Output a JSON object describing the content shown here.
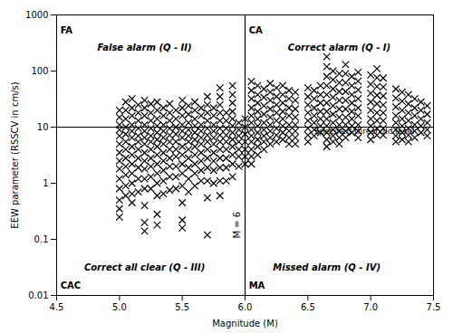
{
  "chart_data": {
    "type": "scatter",
    "xlabel": "Magnitude (M)",
    "ylabel": "EEW parameter (RSSCV in cm/s)",
    "xlim": [
      4.5,
      7.5
    ],
    "ylim": [
      0.01,
      1000
    ],
    "log": "y",
    "grid": false,
    "xticks": [
      4.5,
      {
        "value": 5,
        "label": "5.0"
      },
      5.5,
      {
        "value": 6,
        "label": "6.0"
      },
      6.5,
      {
        "value": 7,
        "label": "7.0"
      },
      7.5
    ],
    "yticks": [
      0.01,
      0.1,
      1,
      10,
      100,
      1000
    ],
    "marker": "x",
    "color": "black",
    "hlines": [
      10
    ],
    "vlines": [
      6.0
    ],
    "annotations": [
      {
        "text": "FA",
        "x": 4.53,
        "y": 600
      },
      {
        "text": "CA",
        "x": 6.03,
        "y": 600
      },
      {
        "text": "CAC",
        "x": 4.53,
        "y": 0.013
      },
      {
        "text": "MA",
        "x": 6.03,
        "y": 0.013
      },
      {
        "text": "False alarm (Q - II)",
        "x": 5.2,
        "y": 300
      },
      {
        "text": "Correct alarm (Q - I)",
        "x": 6.75,
        "y": 300
      },
      {
        "text": "Correct all clear (Q - III)",
        "x": 5.2,
        "y": 0.028
      },
      {
        "text": "Missed alarm (Q - IV)",
        "x": 6.65,
        "y": 0.028
      },
      {
        "text": "Specified threshold level",
        "x": 6.55,
        "y": 7.5
      },
      {
        "text": "M = 6",
        "x": 5.96,
        "y": 0.18
      }
    ],
    "x": [
      5.0,
      5.0,
      5.0,
      5.0,
      5.0,
      5.0,
      5.0,
      5.0,
      5.0,
      5.0,
      5.0,
      5.0,
      5.0,
      5.0,
      5.05,
      5.05,
      5.05,
      5.05,
      5.05,
      5.05,
      5.05,
      5.05,
      5.05,
      5.05,
      5.05,
      5.05,
      5.1,
      5.1,
      5.1,
      5.1,
      5.1,
      5.1,
      5.1,
      5.1,
      5.1,
      5.1,
      5.1,
      5.1,
      5.1,
      5.15,
      5.15,
      5.15,
      5.15,
      5.15,
      5.15,
      5.15,
      5.15,
      5.15,
      5.15,
      5.15,
      5.2,
      5.2,
      5.2,
      5.2,
      5.2,
      5.2,
      5.2,
      5.2,
      5.2,
      5.2,
      5.2,
      5.2,
      5.2,
      5.2,
      5.2,
      5.25,
      5.25,
      5.25,
      5.25,
      5.25,
      5.25,
      5.25,
      5.25,
      5.25,
      5.25,
      5.25,
      5.3,
      5.3,
      5.3,
      5.3,
      5.3,
      5.3,
      5.3,
      5.3,
      5.3,
      5.3,
      5.3,
      5.3,
      5.3,
      5.3,
      5.35,
      5.35,
      5.35,
      5.35,
      5.35,
      5.35,
      5.35,
      5.35,
      5.35,
      5.35,
      5.35,
      5.4,
      5.4,
      5.4,
      5.4,
      5.4,
      5.4,
      5.4,
      5.4,
      5.4,
      5.4,
      5.4,
      5.45,
      5.45,
      5.45,
      5.45,
      5.45,
      5.45,
      5.45,
      5.45,
      5.45,
      5.45,
      5.5,
      5.5,
      5.5,
      5.5,
      5.5,
      5.5,
      5.5,
      5.5,
      5.5,
      5.5,
      5.5,
      5.5,
      5.5,
      5.5,
      5.55,
      5.55,
      5.55,
      5.55,
      5.55,
      5.55,
      5.55,
      5.55,
      5.55,
      5.55,
      5.55,
      5.6,
      5.6,
      5.6,
      5.6,
      5.6,
      5.6,
      5.6,
      5.6,
      5.6,
      5.6,
      5.6,
      5.65,
      5.65,
      5.65,
      5.65,
      5.65,
      5.65,
      5.65,
      5.65,
      5.65,
      5.65,
      5.7,
      5.7,
      5.7,
      5.7,
      5.7,
      5.7,
      5.7,
      5.7,
      5.7,
      5.7,
      5.7,
      5.7,
      5.7,
      5.75,
      5.75,
      5.75,
      5.75,
      5.75,
      5.75,
      5.75,
      5.75,
      5.75,
      5.75,
      5.8,
      5.8,
      5.8,
      5.8,
      5.8,
      5.8,
      5.8,
      5.8,
      5.8,
      5.8,
      5.8,
      5.8,
      5.8,
      5.85,
      5.85,
      5.85,
      5.85,
      5.85,
      5.85,
      5.85,
      5.85,
      5.85,
      5.9,
      5.9,
      5.9,
      5.9,
      5.9,
      5.9,
      5.9,
      5.9,
      5.9,
      5.9,
      5.9,
      5.9,
      5.95,
      5.95,
      5.95,
      5.95,
      5.95,
      5.95,
      5.95,
      6.0,
      6.0,
      6.0,
      6.0,
      6.0,
      6.0,
      6.0,
      6.05,
      6.05,
      6.05,
      6.05,
      6.05,
      6.05,
      6.05,
      6.05,
      6.05,
      6.05,
      6.05,
      6.05,
      6.1,
      6.1,
      6.1,
      6.1,
      6.1,
      6.1,
      6.1,
      6.1,
      6.1,
      6.1,
      6.15,
      6.15,
      6.15,
      6.15,
      6.15,
      6.15,
      6.15,
      6.15,
      6.15,
      6.2,
      6.2,
      6.2,
      6.2,
      6.2,
      6.2,
      6.2,
      6.2,
      6.2,
      6.25,
      6.25,
      6.25,
      6.25,
      6.25,
      6.25,
      6.25,
      6.25,
      6.3,
      6.3,
      6.3,
      6.3,
      6.3,
      6.3,
      6.3,
      6.3,
      6.35,
      6.35,
      6.35,
      6.35,
      6.35,
      6.35,
      6.35,
      6.35,
      6.4,
      6.4,
      6.4,
      6.4,
      6.4,
      6.4,
      6.4,
      6.4,
      6.5,
      6.5,
      6.5,
      6.5,
      6.5,
      6.5,
      6.5,
      6.5,
      6.55,
      6.55,
      6.55,
      6.55,
      6.55,
      6.55,
      6.55,
      6.6,
      6.6,
      6.6,
      6.6,
      6.6,
      6.6,
      6.6,
      6.65,
      6.65,
      6.65,
      6.65,
      6.65,
      6.65,
      6.65,
      6.65,
      6.65,
      6.65,
      6.65,
      6.65,
      6.7,
      6.7,
      6.7,
      6.7,
      6.7,
      6.7,
      6.7,
      6.7,
      6.7,
      6.7,
      6.75,
      6.75,
      6.75,
      6.75,
      6.75,
      6.75,
      6.75,
      6.75,
      6.75,
      6.75,
      6.8,
      6.8,
      6.8,
      6.8,
      6.8,
      6.8,
      6.8,
      6.8,
      6.8,
      6.8,
      6.85,
      6.85,
      6.85,
      6.85,
      6.85,
      6.85,
      6.85,
      6.85,
      6.9,
      6.9,
      6.9,
      6.9,
      6.9,
      6.9,
      6.9,
      6.9,
      6.9,
      7.0,
      7.0,
      7.0,
      7.0,
      7.0,
      7.0,
      7.0,
      7.0,
      7.0,
      7.05,
      7.05,
      7.05,
      7.05,
      7.05,
      7.05,
      7.05,
      7.05,
      7.05,
      7.1,
      7.1,
      7.1,
      7.1,
      7.1,
      7.1,
      7.1,
      7.1,
      7.2,
      7.2,
      7.2,
      7.2,
      7.2,
      7.2,
      7.2,
      7.2,
      7.25,
      7.25,
      7.25,
      7.25,
      7.25,
      7.25,
      7.25,
      7.3,
      7.3,
      7.3,
      7.3,
      7.3,
      7.3,
      7.3,
      7.35,
      7.35,
      7.35,
      7.35,
      7.35,
      7.35,
      7.4,
      7.4,
      7.4,
      7.4,
      7.4,
      7.45,
      7.45,
      7.45,
      7.45,
      7.45
    ],
    "values": [
      20,
      15,
      11,
      9,
      7,
      5,
      3.5,
      2.5,
      1.8,
      1.2,
      0.8,
      0.5,
      0.35,
      0.25,
      28,
      20,
      14,
      10,
      7.5,
      5.5,
      4,
      2.8,
      2,
      1.4,
      0.9,
      0.6,
      32,
      22,
      16,
      11,
      8.5,
      6.5,
      4.5,
      3.2,
      2.2,
      1.5,
      1.0,
      0.65,
      0.45,
      25,
      18,
      13,
      9.5,
      7,
      5.5,
      4,
      2.8,
      1.9,
      1.2,
      0.7,
      30,
      22,
      16,
      11,
      8.5,
      6.5,
      5,
      3.5,
      2.5,
      1.8,
      1.2,
      0.8,
      0.4,
      0.2,
      0.14,
      26,
      18,
      13,
      9.5,
      7,
      5.5,
      4,
      2.8,
      2,
      1.3,
      0.8,
      28,
      20,
      14,
      10.5,
      8,
      6,
      4.5,
      3.2,
      2.2,
      1.5,
      1.0,
      0.6,
      0.28,
      0.18,
      22,
      16,
      11,
      8.5,
      6.5,
      5,
      3.5,
      2.5,
      1.7,
      1.1,
      0.65,
      26,
      18,
      13,
      9.5,
      7.2,
      5.5,
      4,
      2.8,
      2,
      1.3,
      0.75,
      20,
      14,
      10,
      7.5,
      5.5,
      4,
      3,
      2,
      1.3,
      0.8,
      30,
      22,
      16,
      11,
      8.5,
      6.5,
      4.5,
      3.2,
      2.2,
      1.5,
      0.9,
      0.45,
      0.22,
      0.16,
      24,
      17,
      12,
      9,
      7,
      5.5,
      4,
      2.8,
      1.9,
      1.2,
      0.7,
      28,
      20,
      14,
      10.5,
      8,
      6,
      4.5,
      3.2,
      2.2,
      1.5,
      0.9,
      22,
      16,
      11,
      8.5,
      6.5,
      5,
      3.5,
      2.5,
      1.7,
      1.1,
      35,
      25,
      18,
      13,
      9.5,
      7.2,
      5.5,
      4,
      2.8,
      1.9,
      1.1,
      0.55,
      0.12,
      22,
      16,
      11,
      8.5,
      6.5,
      5,
      3.5,
      2.5,
      1.7,
      1.0,
      50,
      35,
      25,
      18,
      13,
      9.5,
      7.2,
      5.5,
      4,
      2.8,
      1.9,
      1.1,
      0.6,
      18,
      13,
      9.5,
      7.2,
      5.5,
      4,
      2.8,
      1.9,
      1.1,
      55,
      38,
      27,
      19,
      14,
      10.5,
      8,
      6,
      4.5,
      3.2,
      2.2,
      1.3,
      12,
      9,
      7,
      5.5,
      4,
      3,
      2,
      14,
      10,
      7.5,
      5.5,
      4,
      3,
      2.2,
      65,
      45,
      32,
      22,
      16,
      12,
      9,
      7,
      5.5,
      4,
      3,
      2.2,
      55,
      38,
      27,
      19,
      14,
      10.5,
      8,
      6,
      4.5,
      3.2,
      48,
      34,
      24,
      17,
      12,
      9,
      7,
      5.5,
      4,
      60,
      42,
      30,
      21,
      15,
      11,
      8.5,
      6.5,
      5,
      50,
      35,
      25,
      18,
      13,
      9.5,
      7.2,
      5.5,
      55,
      38,
      27,
      19,
      14,
      10.5,
      8,
      6,
      45,
      32,
      22,
      16,
      11,
      8.5,
      6.5,
      5,
      42,
      30,
      21,
      15,
      11,
      8.5,
      6.5,
      5,
      50,
      35,
      25,
      18,
      13,
      9.5,
      7.2,
      5.5,
      45,
      32,
      22,
      16,
      12,
      9,
      7,
      55,
      38,
      27,
      19,
      14,
      10.5,
      8,
      180,
      120,
      80,
      55,
      38,
      27,
      19,
      14,
      10.5,
      8,
      6,
      4.5,
      100,
      70,
      48,
      34,
      24,
      17,
      12,
      9,
      7,
      5.5,
      90,
      62,
      43,
      30,
      21,
      15,
      11,
      8.5,
      6.5,
      5,
      130,
      90,
      62,
      43,
      30,
      21,
      15,
      11,
      8.5,
      6.5,
      80,
      55,
      38,
      27,
      19,
      14,
      10.5,
      8,
      95,
      66,
      46,
      32,
      22,
      16,
      11,
      8.5,
      6.5,
      85,
      58,
      40,
      28,
      20,
      14,
      10.5,
      8,
      6,
      110,
      76,
      53,
      37,
      26,
      18,
      13,
      9.5,
      7.2,
      75,
      52,
      36,
      25,
      18,
      13,
      9.5,
      7.2,
      48,
      33,
      23,
      16,
      12,
      9,
      7,
      5.5,
      42,
      29,
      20,
      14,
      10.5,
      8,
      6,
      38,
      26,
      18,
      13,
      9.5,
      7.2,
      5.5,
      32,
      22,
      16,
      11,
      8.5,
      6.5,
      28,
      20,
      14,
      10.5,
      8,
      24,
      17,
      12,
      9,
      7
    ]
  }
}
